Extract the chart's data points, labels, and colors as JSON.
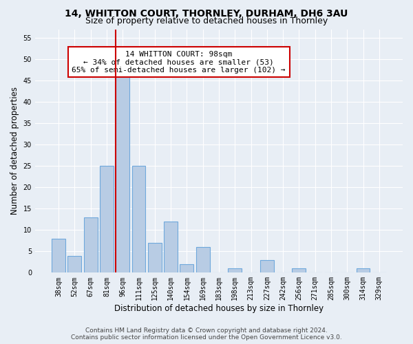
{
  "title": "14, WHITTON COURT, THORNLEY, DURHAM, DH6 3AU",
  "subtitle": "Size of property relative to detached houses in Thornley",
  "xlabel": "Distribution of detached houses by size in Thornley",
  "ylabel": "Number of detached properties",
  "bin_labels": [
    "38sqm",
    "52sqm",
    "67sqm",
    "81sqm",
    "96sqm",
    "111sqm",
    "125sqm",
    "140sqm",
    "154sqm",
    "169sqm",
    "183sqm",
    "198sqm",
    "213sqm",
    "227sqm",
    "242sqm",
    "256sqm",
    "271sqm",
    "285sqm",
    "300sqm",
    "314sqm",
    "329sqm"
  ],
  "bar_heights": [
    8,
    4,
    13,
    25,
    46,
    25,
    7,
    12,
    2,
    6,
    0,
    1,
    0,
    3,
    0,
    1,
    0,
    0,
    0,
    1,
    0
  ],
  "bar_color": "#b8cce4",
  "bar_edge_color": "#6fa8dc",
  "highlight_bin_index": 4,
  "vline_color": "#cc0000",
  "annotation_text": "14 WHITTON COURT: 98sqm\n← 34% of detached houses are smaller (53)\n65% of semi-detached houses are larger (102) →",
  "annotation_box_color": "#ffffff",
  "annotation_box_edge_color": "#cc0000",
  "ylim": [
    0,
    57
  ],
  "yticks": [
    0,
    5,
    10,
    15,
    20,
    25,
    30,
    35,
    40,
    45,
    50,
    55
  ],
  "footer_line1": "Contains HM Land Registry data © Crown copyright and database right 2024.",
  "footer_line2": "Contains public sector information licensed under the Open Government Licence v3.0.",
  "bg_color": "#e8eef5",
  "plot_bg_color": "#e8eef5",
  "title_fontsize": 10,
  "subtitle_fontsize": 9,
  "axis_label_fontsize": 8.5,
  "tick_fontsize": 7,
  "annotation_fontsize": 8,
  "footer_fontsize": 6.5
}
